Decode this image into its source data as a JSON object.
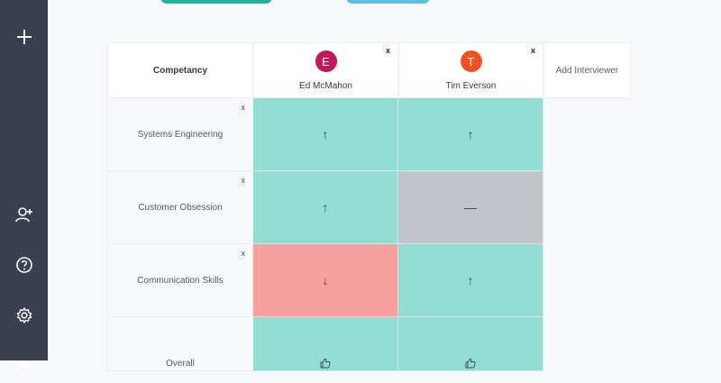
{
  "colors": {
    "sidebar": "#3a4051",
    "up": "#92ddd4",
    "neutral": "#c1c5c9",
    "down": "#f8a0a0",
    "avatar_e": "#c2185b",
    "avatar_t": "#f4511e"
  },
  "sidebar": {
    "icons": [
      "plus-icon",
      "add-user-icon",
      "help-icon",
      "settings-icon"
    ]
  },
  "header": {
    "competency": "Competancy",
    "add_interviewer": "Add Interviewer",
    "close": "x"
  },
  "interviewers": [
    {
      "initial": "E",
      "name": "Ed McMahon"
    },
    {
      "initial": "T",
      "name": "Tim Everson"
    }
  ],
  "rows": [
    {
      "label": "Systems Engineering",
      "close": "x",
      "scores": [
        "↑",
        "↑"
      ]
    },
    {
      "label": "Customer Obsession",
      "close": "x",
      "scores": [
        "↑",
        "—"
      ]
    },
    {
      "label": "Communication Skills",
      "close": "x",
      "scores": [
        "↓",
        "↑"
      ]
    },
    {
      "label": "Overall",
      "scores": [
        "thumbs-up",
        "thumbs-up"
      ]
    }
  ]
}
